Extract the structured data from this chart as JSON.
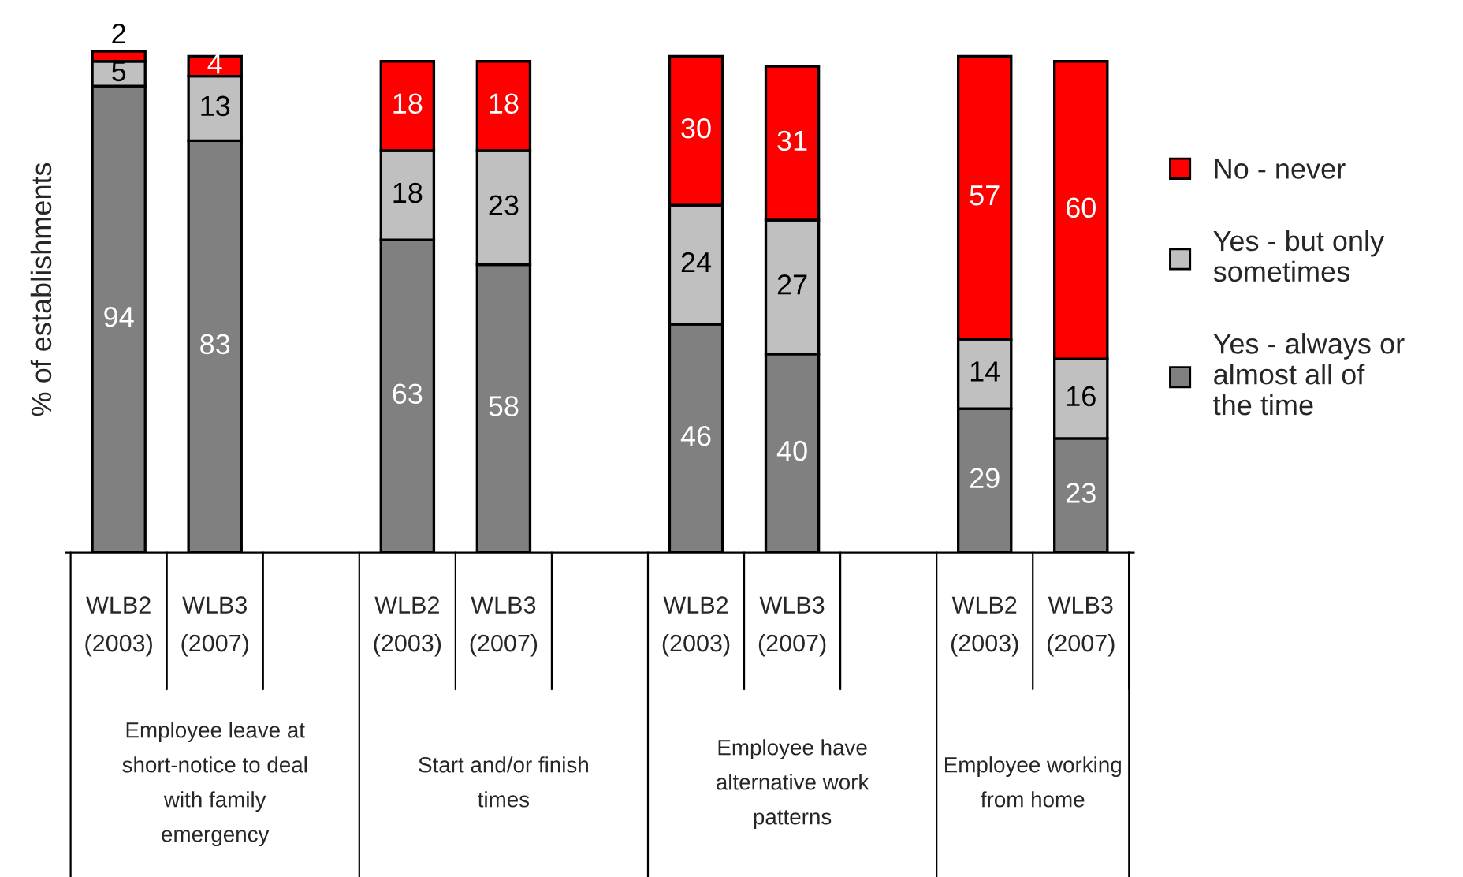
{
  "chart_data": {
    "type": "bar",
    "stacked": true,
    "ylabel": "% of establishments",
    "categories": [
      "WLB2 (2003)",
      "WLB3 (2007)",
      null,
      "WLB2 (2003)",
      "WLB3 (2007)",
      null,
      "WLB2 (2003)",
      "WLB3 (2007)",
      null,
      "WLB2 (2003)",
      "WLB3 (2007)"
    ],
    "series": [
      {
        "name": "Yes - always or almost all of the time",
        "color": "#808080",
        "values": [
          94,
          83,
          null,
          63,
          58,
          null,
          46,
          40,
          null,
          29,
          23
        ]
      },
      {
        "name": "Yes - but only sometimes",
        "color": "#c0c0c0",
        "values": [
          5,
          13,
          null,
          18,
          23,
          null,
          24,
          27,
          null,
          14,
          16
        ]
      },
      {
        "name": "No - never",
        "color": "#ff0000",
        "values": [
          2,
          4,
          null,
          18,
          18,
          null,
          30,
          31,
          null,
          57,
          60
        ]
      }
    ],
    "annotations": [
      "Employee leave at short-notice to deal with family emergency",
      "Start and/or finish times",
      "Employee have alternative work patterns",
      "Employee working from home"
    ],
    "data_labels": true,
    "legend": "right"
  }
}
